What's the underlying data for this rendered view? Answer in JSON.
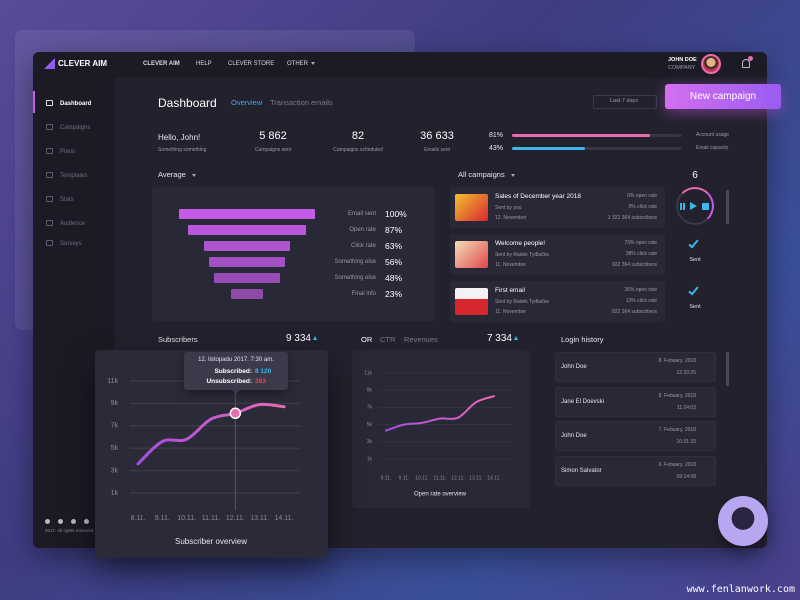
{
  "brand": "CLEVER AIM",
  "nav": [
    "CLEVER AIM",
    "HELP",
    "CLEVER STORE",
    "OTHER"
  ],
  "user": {
    "name": "JOHN DOE",
    "company": "COMPANY"
  },
  "sidebar": [
    "Dashboard",
    "Campaigns",
    "Plans",
    "Templates",
    "Stats",
    "Audience",
    "Surveys"
  ],
  "footer": "2017. All rights reserved",
  "header": {
    "title": "Dashboard",
    "tabs": [
      "Overview",
      "Transaction emails"
    ],
    "date_range": "Last 7 days",
    "button": "New campaign"
  },
  "greeting": {
    "title": "Hello, John!",
    "subtitle": "Something something"
  },
  "stats": [
    {
      "value": "5 862",
      "label": "Campaigns sent"
    },
    {
      "value": "82",
      "label": "Campaigns scheduled"
    },
    {
      "value": "36 633",
      "label": "Emails sent"
    }
  ],
  "capacity": [
    {
      "value": 81,
      "label": "81%",
      "name": "Account usage",
      "color": "#e86bb0"
    },
    {
      "value": 43,
      "label": "43%",
      "name": "Email capacity",
      "color": "#3fb6e8"
    }
  ],
  "average": {
    "title": "Average",
    "color": "#c45ce8",
    "items": [
      {
        "name": "Email sent",
        "value": 100,
        "label": "100%"
      },
      {
        "name": "Open rate",
        "value": 87,
        "label": "87%"
      },
      {
        "name": "Click rate",
        "value": 63,
        "label": "63%"
      },
      {
        "name": "Something else",
        "value": 56,
        "label": "56%"
      },
      {
        "name": "Something else",
        "value": 48,
        "label": "48%"
      },
      {
        "name": "Final info",
        "value": 23,
        "label": "23%"
      }
    ]
  },
  "campaigns": {
    "title": "All campaigns",
    "count": "6",
    "items": [
      {
        "title": "Sales of December year 2018",
        "sender": "Sent by you",
        "date": "12. November",
        "open_rate": "0% open rate",
        "click_rate": "0% click rate",
        "subscribers": "1 322 364 subscribers"
      },
      {
        "title": "Welcome people!",
        "sender": "Sent by Radek Tydlačka",
        "date": "11. November",
        "open_rate": "73% open rate",
        "click_rate": "38% click rate",
        "subscribers": "922 364 subscribers",
        "status": "Sent"
      },
      {
        "title": "First email",
        "sender": "Sent by Radek Tydlačka",
        "date": "11. November",
        "open_rate": "36% open rate",
        "click_rate": "13% click rate",
        "subscribers": "822 364 subscribers",
        "status": "Sent"
      }
    ]
  },
  "subscribers": {
    "title": "Subscribers",
    "total": "9 334",
    "chart": {
      "type": "line",
      "title": "Subscriber overview",
      "color": "#e86bb0",
      "categories": [
        "8.11.",
        "9.11.",
        "10.11.",
        "11.11.",
        "12.11.",
        "13.11.",
        "14.11."
      ],
      "values": [
        3600,
        5600,
        5800,
        7600,
        8120,
        8900,
        8700
      ],
      "ylim": [
        1000,
        11000
      ],
      "yticks": [
        {
          "value": 1000,
          "label": "1k"
        },
        {
          "value": 3000,
          "label": "3k"
        },
        {
          "value": 5000,
          "label": "5k"
        },
        {
          "value": 7000,
          "label": "7k"
        },
        {
          "value": 9000,
          "label": "9k"
        },
        {
          "value": 11000,
          "label": "11k"
        }
      ],
      "grid": true,
      "tooltip": {
        "date": "12. listopadu 2017. 7:30 am.",
        "subscribed_label": "Subscribed:",
        "subscribed": "8 120",
        "unsubscribed_label": "Unsubscribed:",
        "unsubscribed": "383"
      }
    }
  },
  "open_rate": {
    "tabs": [
      "OR",
      "CTR",
      "Revenues"
    ],
    "total": "7 334",
    "chart": {
      "type": "line",
      "title": "Open rate overview",
      "color": "#e86bb0",
      "categories": [
        "8.11.",
        "9.11.",
        "10.11.",
        "11.11.",
        "12.11.",
        "13.11.",
        "14.11."
      ],
      "values": [
        4300,
        5000,
        5200,
        5700,
        5800,
        7600,
        8300
      ],
      "ylim": [
        1000,
        11000
      ],
      "yticks": [
        {
          "value": 1000,
          "label": "1k"
        },
        {
          "value": 3000,
          "label": "3k"
        },
        {
          "value": 5000,
          "label": "5k"
        },
        {
          "value": 7000,
          "label": "7k"
        },
        {
          "value": 9000,
          "label": "9k"
        },
        {
          "value": 11000,
          "label": "11k"
        }
      ],
      "grid": true
    }
  },
  "login_history": {
    "title": "Login history",
    "items": [
      {
        "name": "John Doe",
        "date": "8. Febuary, 2018",
        "time": "12:33:25"
      },
      {
        "name": "Jane El Doevski",
        "date": "8. Febuary, 2018",
        "time": "11:24:03"
      },
      {
        "name": "John Doe",
        "date": "7. Febuary, 2018",
        "time": "10:31:33"
      },
      {
        "name": "Simon Salvator",
        "date": "6. Febuary, 2018",
        "time": "09:14:08"
      }
    ]
  },
  "watermark": "www.fenlanwork.com"
}
